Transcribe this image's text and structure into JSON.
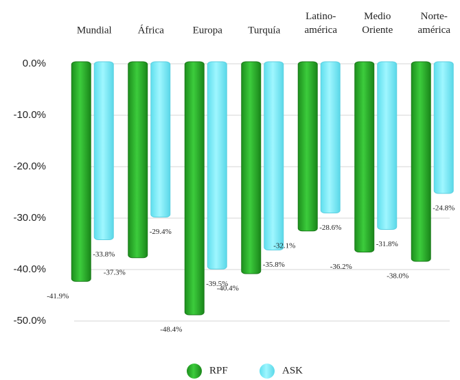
{
  "chart_data": {
    "type": "bar",
    "categories": [
      "Mundial",
      "África",
      "Europa",
      "Turquía",
      "Latino-\namérica",
      "Medio\nOriente",
      "Norte-\namérica"
    ],
    "series": [
      {
        "name": "RPF",
        "color": "#2db52d",
        "values": [
          -41.9,
          -37.3,
          -48.4,
          -40.4,
          -32.1,
          -36.2,
          -38.0
        ],
        "value_labels": [
          "-41.9%",
          "-37.3%",
          "-48.4%",
          "-40.4%",
          "-32.1%",
          "-36.2%",
          "-38.0%"
        ]
      },
      {
        "name": "ASK",
        "color": "#7eeefc",
        "values": [
          -33.8,
          -29.4,
          -39.5,
          -35.8,
          -28.6,
          -31.8,
          -24.8
        ],
        "value_labels": [
          "-33.8%",
          "-29.4%",
          "-39.5%",
          "-35.8%",
          "-28.6%",
          "-31.8%",
          "-24.8%"
        ]
      }
    ],
    "ylim": [
      -50,
      0
    ],
    "yticks": [
      {
        "value": 0,
        "label": "0.0%"
      },
      {
        "value": -10,
        "label": "-10.0%"
      },
      {
        "value": -20,
        "label": "-20.0%"
      },
      {
        "value": -30,
        "label": "-30.0%"
      },
      {
        "value": -40,
        "label": "-40.0%"
      },
      {
        "value": -50,
        "label": "-50.0%"
      }
    ],
    "grid": true
  }
}
